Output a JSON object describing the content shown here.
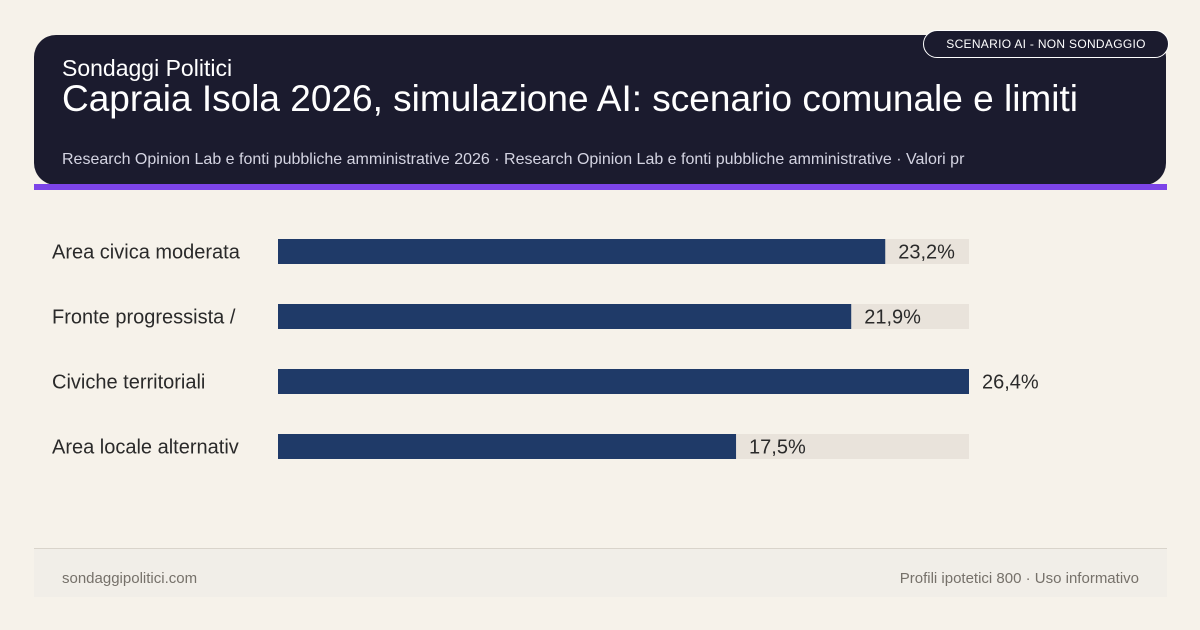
{
  "header": {
    "brand": "Sondaggi Politici",
    "title": "Capraia Isola 2026, simulazione AI: scenario comunale e limiti",
    "subtitle": "Research Opinion Lab e fonti pubbliche amministrative 2026 · Research Opinion Lab e fonti pubbliche amministrative · Valori pr",
    "badge": "SCENARIO AI - NON SONDAGGIO"
  },
  "chart_data": {
    "type": "bar",
    "orientation": "horizontal",
    "categories": [
      "Area civica moderata",
      "Fronte progressista /",
      "Civiche territoriali",
      "Area locale alternativ"
    ],
    "values": [
      23.2,
      21.9,
      26.4,
      17.5
    ],
    "value_labels": [
      "23,2%",
      "21,9%",
      "26,4%",
      "17,5%"
    ],
    "xlim": [
      0,
      26.4
    ],
    "colors": {
      "bar": "#1f3a68",
      "track": "#e9e3db",
      "label": "#2a2a2a",
      "value": "#2a2a2a"
    }
  },
  "footer": {
    "left": "sondaggipolitici.com",
    "right": "Profili ipotetici 800 · Uso informativo"
  },
  "colors": {
    "header_bg": "#1b1b2e",
    "accent": "#7c44e8",
    "page_bg": "#f6f2ea"
  }
}
